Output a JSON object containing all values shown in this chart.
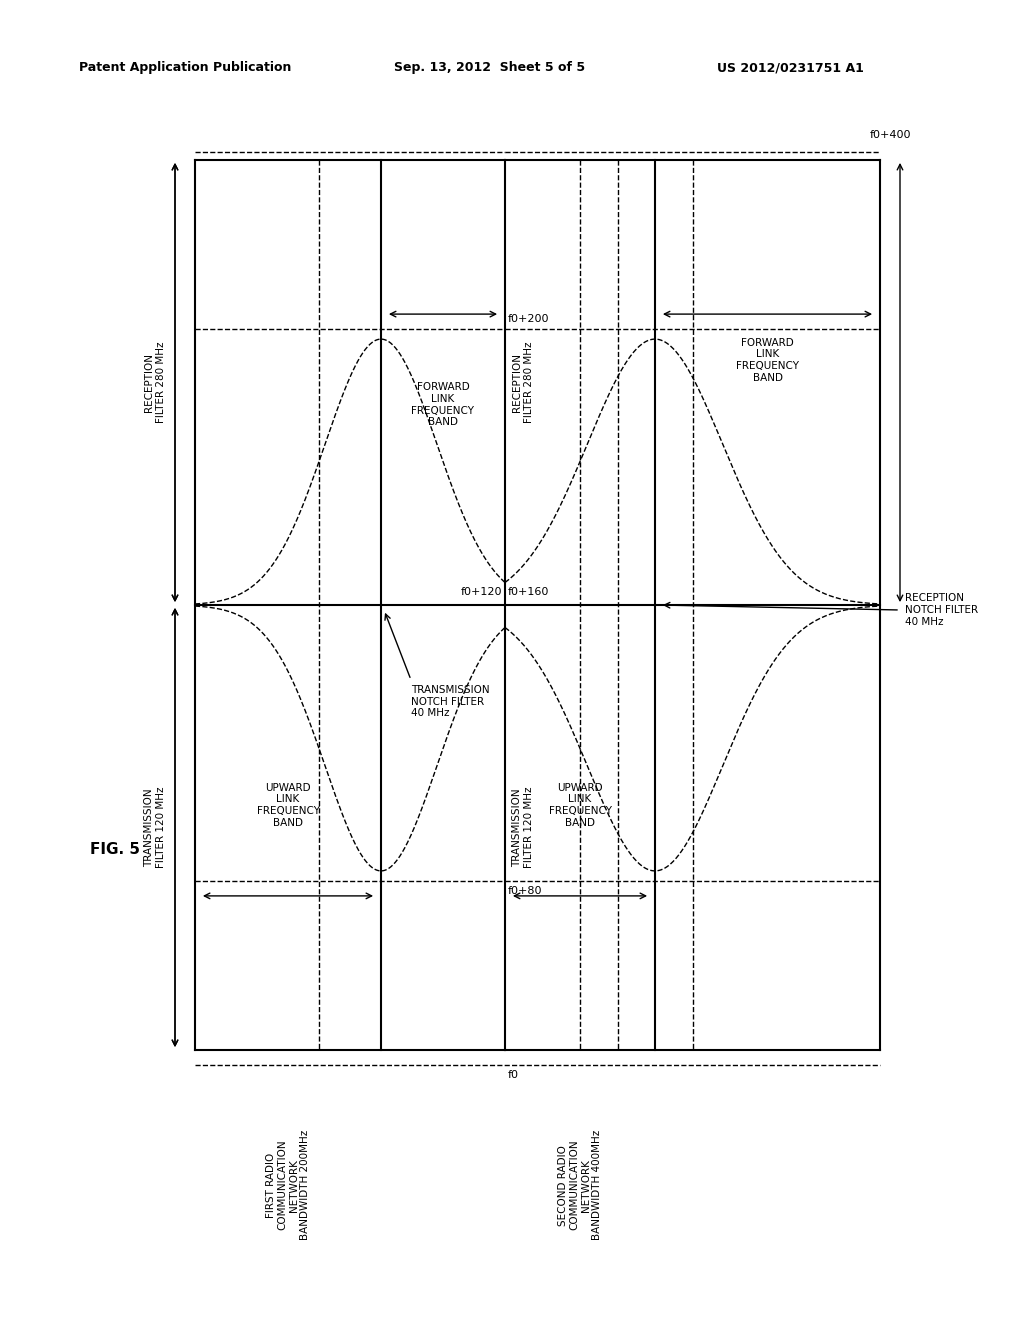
{
  "bg_color": "#ffffff",
  "header_left": "Patent Application Publication",
  "header_mid": "Sep. 13, 2012  Sheet 5 of 5",
  "header_right": "US 2012/0231751 A1",
  "fig_label": "FIG. 5",
  "first_network_label": "FIRST RADIO\nCOMMUNICATION\nNETWORK\nBANDWIDTH 200MHz",
  "second_network_label": "SECOND RADIO\nCOMMUNICATION\nNETWORK\nBANDWIDTH 400MHz",
  "tx_filter_120": "TRANSMISSION\nFILTER 120 MHz",
  "rx_filter_280": "RECEPTION\nFILTER 280 MHz",
  "tx_notch_40": "TRANSMISSION\nNOTCH FILTER\n40 MHz",
  "rx_notch_40": "RECEPTION\nNOTCH FILTER\n40 MHz",
  "tx_filter_120_2": "TRANSMISSION\nFILTER 120 MHz",
  "rx_filter_280_2": "RECEPTION\nFILTER 280 MHz",
  "upward_link_band": "UPWARD\nLINK\nFREQUENCY\nBAND",
  "forward_link_band": "FORWARD\nLINK\nFREQUENCY\nBAND",
  "upward_link_band2": "UPWARD\nLINK\nFREQUENCY\nBAND",
  "forward_link_band2": "FORWARD\nLINK\nFREQUENCY\nBAND",
  "rx_filter_280_inner": "RECEPTION\nFILTER 280 MHz",
  "f0": "f0",
  "f0_80": "f0+80",
  "f0_120": "f0+120",
  "f0_160": "f0+160",
  "f0_200": "f0+200",
  "f0_400": "f0+400"
}
